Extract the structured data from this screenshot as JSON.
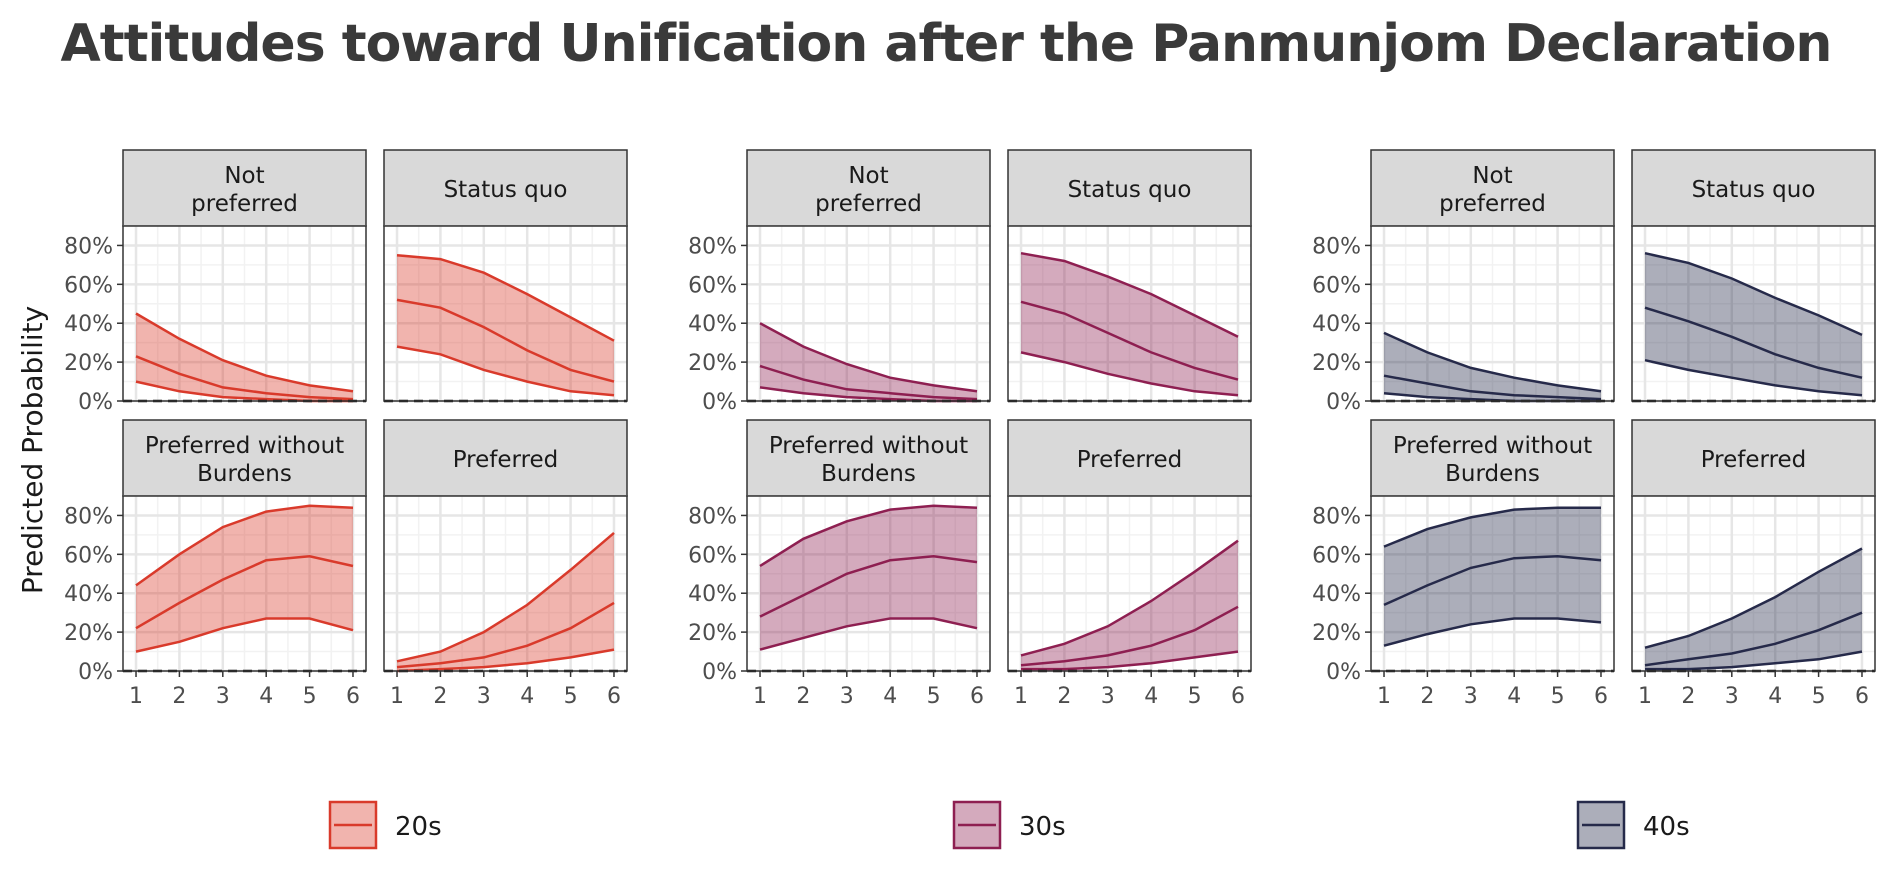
{
  "title": "Attitudes toward Unification after the Panmunjom Declaration",
  "ylabel": "Predicted Probability",
  "colors": {
    "20s": "#d93a2b",
    "30s": "#8e1f51",
    "40s": "#262a4a"
  },
  "chart_data": {
    "type": "area",
    "title": "Attitudes toward Unification after the Panmunjom Declaration",
    "ylabel": "Predicted Probability",
    "xlabel": "",
    "x": [
      1,
      2,
      3,
      4,
      5,
      6
    ],
    "ylim": [
      0,
      0.9
    ],
    "yticks": [
      "0%",
      "20%",
      "40%",
      "60%",
      "80%"
    ],
    "ytick_values": [
      0,
      0.2,
      0.4,
      0.6,
      0.8
    ],
    "grid": true,
    "reference_line": 0,
    "legend_position": "bottom",
    "facets": [
      "Not preferred",
      "Status quo",
      "Preferred without Burdens",
      "Preferred"
    ],
    "facet_labels": [
      [
        "Not",
        "preferred"
      ],
      [
        "Status quo"
      ],
      [
        "Preferred without",
        "Burdens"
      ],
      [
        "Preferred"
      ]
    ],
    "groups": [
      {
        "name": "20s",
        "panels": [
          {
            "mid": [
              0.23,
              0.14,
              0.07,
              0.04,
              0.02,
              0.01
            ],
            "lo": [
              0.1,
              0.05,
              0.02,
              0.01,
              0.0,
              0.0
            ],
            "hi": [
              0.45,
              0.32,
              0.21,
              0.13,
              0.08,
              0.05
            ]
          },
          {
            "mid": [
              0.52,
              0.48,
              0.38,
              0.26,
              0.16,
              0.1
            ],
            "lo": [
              0.28,
              0.24,
              0.16,
              0.1,
              0.05,
              0.03
            ],
            "hi": [
              0.75,
              0.73,
              0.66,
              0.55,
              0.43,
              0.31
            ]
          },
          {
            "mid": [
              0.22,
              0.35,
              0.47,
              0.57,
              0.59,
              0.54
            ],
            "lo": [
              0.1,
              0.15,
              0.22,
              0.27,
              0.27,
              0.21
            ],
            "hi": [
              0.44,
              0.6,
              0.74,
              0.82,
              0.85,
              0.84
            ]
          },
          {
            "mid": [
              0.02,
              0.04,
              0.07,
              0.13,
              0.22,
              0.35
            ],
            "lo": [
              0.0,
              0.01,
              0.02,
              0.04,
              0.07,
              0.11
            ],
            "hi": [
              0.05,
              0.1,
              0.2,
              0.34,
              0.52,
              0.71
            ]
          }
        ]
      },
      {
        "name": "30s",
        "panels": [
          {
            "mid": [
              0.18,
              0.11,
              0.06,
              0.04,
              0.02,
              0.01
            ],
            "lo": [
              0.07,
              0.04,
              0.02,
              0.01,
              0.0,
              0.0
            ],
            "hi": [
              0.4,
              0.28,
              0.19,
              0.12,
              0.08,
              0.05
            ]
          },
          {
            "mid": [
              0.51,
              0.45,
              0.35,
              0.25,
              0.17,
              0.11
            ],
            "lo": [
              0.25,
              0.2,
              0.14,
              0.09,
              0.05,
              0.03
            ],
            "hi": [
              0.76,
              0.72,
              0.64,
              0.55,
              0.44,
              0.33
            ]
          },
          {
            "mid": [
              0.28,
              0.39,
              0.5,
              0.57,
              0.59,
              0.56
            ],
            "lo": [
              0.11,
              0.17,
              0.23,
              0.27,
              0.27,
              0.22
            ],
            "hi": [
              0.54,
              0.68,
              0.77,
              0.83,
              0.85,
              0.84
            ]
          },
          {
            "mid": [
              0.03,
              0.05,
              0.08,
              0.13,
              0.21,
              0.33
            ],
            "lo": [
              0.01,
              0.01,
              0.02,
              0.04,
              0.07,
              0.1
            ],
            "hi": [
              0.08,
              0.14,
              0.23,
              0.36,
              0.51,
              0.67
            ]
          }
        ]
      },
      {
        "name": "40s",
        "panels": [
          {
            "mid": [
              0.13,
              0.09,
              0.05,
              0.03,
              0.02,
              0.01
            ],
            "lo": [
              0.04,
              0.02,
              0.01,
              0.0,
              0.0,
              0.0
            ],
            "hi": [
              0.35,
              0.25,
              0.17,
              0.12,
              0.08,
              0.05
            ]
          },
          {
            "mid": [
              0.48,
              0.41,
              0.33,
              0.24,
              0.17,
              0.12
            ],
            "lo": [
              0.21,
              0.16,
              0.12,
              0.08,
              0.05,
              0.03
            ],
            "hi": [
              0.76,
              0.71,
              0.63,
              0.53,
              0.44,
              0.34
            ]
          },
          {
            "mid": [
              0.34,
              0.44,
              0.53,
              0.58,
              0.59,
              0.57
            ],
            "lo": [
              0.13,
              0.19,
              0.24,
              0.27,
              0.27,
              0.25
            ],
            "hi": [
              0.64,
              0.73,
              0.79,
              0.83,
              0.84,
              0.84
            ]
          },
          {
            "mid": [
              0.03,
              0.06,
              0.09,
              0.14,
              0.21,
              0.3
            ],
            "lo": [
              0.01,
              0.01,
              0.02,
              0.04,
              0.06,
              0.1
            ],
            "hi": [
              0.12,
              0.18,
              0.27,
              0.38,
              0.51,
              0.63
            ]
          }
        ]
      }
    ]
  }
}
